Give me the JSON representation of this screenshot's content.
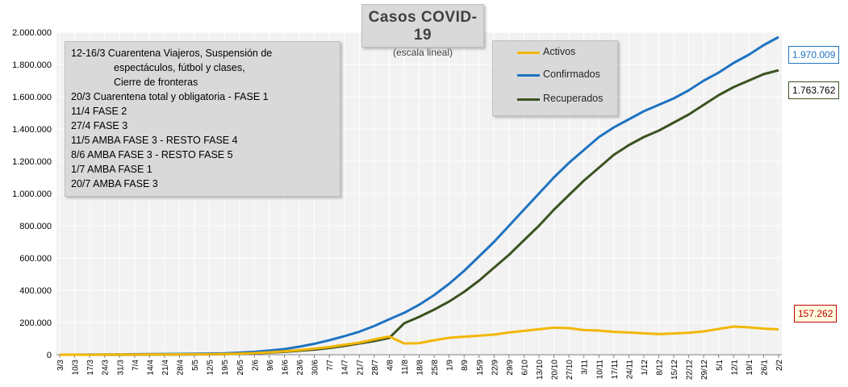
{
  "chart_data": {
    "type": "line",
    "title": "Casos COVID-19",
    "subtitle": "(escala lineal)",
    "xlabel": "",
    "ylabel": "",
    "ylim": [
      0,
      2000000
    ],
    "grid": true,
    "legend_position": "top-center",
    "y_ticks": [
      "0",
      "200.000",
      "400.000",
      "600.000",
      "800.000",
      "1.000.000",
      "1.200.000",
      "1.400.000",
      "1.600.000",
      "1.800.000",
      "2.000.000"
    ],
    "x_ticks": [
      "3/3",
      "10/3",
      "17/3",
      "24/3",
      "31/3",
      "7/4",
      "14/4",
      "21/4",
      "28/4",
      "5/5",
      "12/5",
      "19/5",
      "26/5",
      "2/6",
      "9/6",
      "16/6",
      "23/6",
      "30/6",
      "7/7",
      "14/7",
      "21/7",
      "28/7",
      "4/8",
      "11/8",
      "18/8",
      "25/8",
      "1/9",
      "8/9",
      "15/9",
      "22/9",
      "29/9",
      "6/10",
      "13/10",
      "20/10",
      "27/10",
      "3/11",
      "10/11",
      "17/11",
      "24/11",
      "1/12",
      "8/12",
      "15/12",
      "22/12",
      "29/12",
      "5/1",
      "12/1",
      "19/1",
      "26/1",
      "2/2"
    ],
    "series": [
      {
        "name": "Activos",
        "color": "#f2b705",
        "values": [
          0,
          0,
          100,
          700,
          1200,
          1400,
          1800,
          2200,
          2500,
          3000,
          3500,
          4500,
          7000,
          10000,
          15000,
          21000,
          29000,
          38000,
          48000,
          62000,
          75000,
          95000,
          113000,
          70000,
          72000,
          90000,
          105000,
          112000,
          118000,
          125000,
          138000,
          148000,
          158000,
          168000,
          165000,
          153000,
          150000,
          142000,
          138000,
          133000,
          128000,
          132000,
          136000,
          145000,
          160000,
          175000,
          170000,
          162000,
          157262
        ]
      },
      {
        "name": "Confirmados",
        "color": "#1f73c2",
        "values": [
          0,
          100,
          800,
          1300,
          2000,
          3000,
          4000,
          4500,
          5000,
          6000,
          7500,
          9000,
          13000,
          18000,
          26000,
          35000,
          50000,
          68000,
          90000,
          115000,
          143000,
          178000,
          220000,
          260000,
          310000,
          370000,
          440000,
          520000,
          610000,
          700000,
          800000,
          900000,
          1000000,
          1100000,
          1190000,
          1270000,
          1350000,
          1410000,
          1460000,
          1510000,
          1550000,
          1590000,
          1640000,
          1700000,
          1750000,
          1810000,
          1860000,
          1920000,
          1970009
        ]
      },
      {
        "name": "Recuperados",
        "color": "#3b5321",
        "values": [
          0,
          0,
          0,
          0,
          100,
          300,
          800,
          1300,
          1600,
          2000,
          2500,
          3500,
          6000,
          9000,
          13000,
          18000,
          25000,
          32000,
          42000,
          55000,
          70000,
          85000,
          104000,
          195000,
          235000,
          280000,
          330000,
          390000,
          460000,
          540000,
          620000,
          710000,
          800000,
          900000,
          990000,
          1080000,
          1160000,
          1240000,
          1300000,
          1350000,
          1390000,
          1440000,
          1490000,
          1550000,
          1610000,
          1660000,
          1700000,
          1740000,
          1763762
        ]
      }
    ],
    "end_labels": [
      {
        "series": "Confirmados",
        "text": "1.970.009",
        "color": "#1f73c2",
        "bg": "#ffffff"
      },
      {
        "series": "Recuperados",
        "text": "1.763.762",
        "color": "#000000",
        "bg": "#ffffff"
      },
      {
        "series": "Activos",
        "text": "157.262",
        "color": "#c00000",
        "bg": "#ffffe0"
      }
    ],
    "annotations": [
      "12-16/3  Cuarentena Viajeros, Suspensión de",
      "espectáculos, fútbol y clases,",
      "Cierre de fronteras",
      "20/3  Cuarentena total y obligatoria - FASE 1",
      "11/4 FASE 2",
      "27/4 FASE 3",
      "11/5 AMBA FASE 3 - RESTO FASE 4",
      "8/6 AMBA FASE 3 - RESTO FASE 5",
      "1/7 AMBA FASE 1",
      "20/7 AMBA FASE 3"
    ]
  }
}
